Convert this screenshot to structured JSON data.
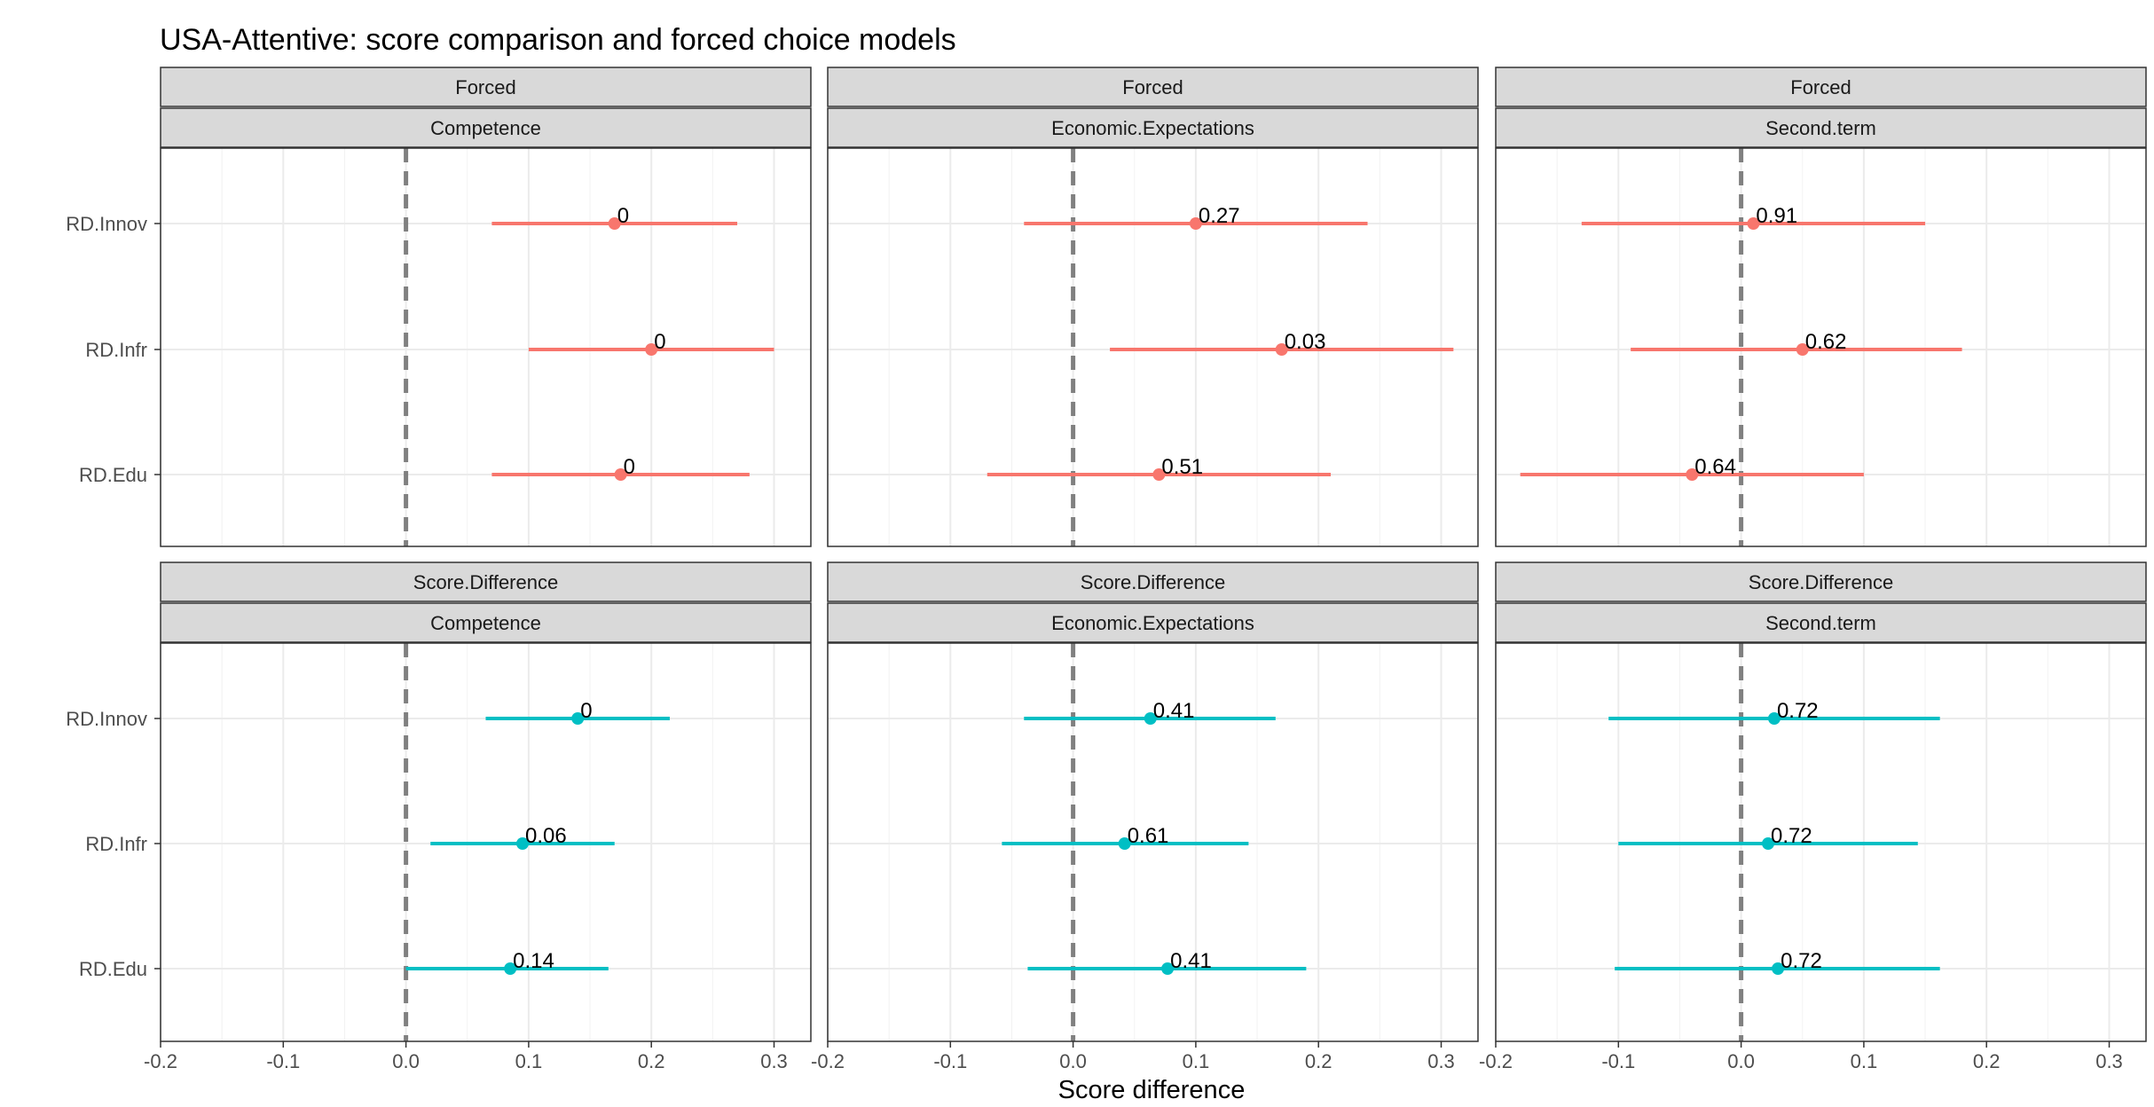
{
  "chart_data": {
    "type": "forest-plot",
    "title": "USA-Attentive: score comparison and forced choice models",
    "xlabel": "Score difference",
    "ylabel": "",
    "xlim": [
      -0.2,
      0.33
    ],
    "x_ticks": [
      -0.2,
      -0.1,
      0.0,
      0.1,
      0.2,
      0.3
    ],
    "x_tick_labels": [
      "-0.2",
      "-0.1",
      "0.0",
      "0.1",
      "0.2",
      "0.3"
    ],
    "categories": [
      "RD.Innov",
      "RD.Infr",
      "RD.Edu"
    ],
    "reference_line": 0,
    "grid": true,
    "colors": {
      "Forced": "#F8766D",
      "Score.Difference": "#00BFC4",
      "reference": "#808080",
      "strip": "#D9D9D9"
    },
    "facet_rows": [
      "Forced",
      "Score.Difference"
    ],
    "facet_cols": [
      "Competence",
      "Economic.Expectations",
      "Second.term"
    ],
    "panels": [
      {
        "row": "Forced",
        "col": "Competence",
        "points": [
          {
            "category": "RD.Innov",
            "estimate": 0.17,
            "lower": 0.07,
            "upper": 0.27,
            "label": "0"
          },
          {
            "category": "RD.Infr",
            "estimate": 0.2,
            "lower": 0.1,
            "upper": 0.3,
            "label": "0"
          },
          {
            "category": "RD.Edu",
            "estimate": 0.175,
            "lower": 0.07,
            "upper": 0.28,
            "label": "0"
          }
        ]
      },
      {
        "row": "Forced",
        "col": "Economic.Expectations",
        "points": [
          {
            "category": "RD.Innov",
            "estimate": 0.1,
            "lower": -0.04,
            "upper": 0.24,
            "label": "0.27"
          },
          {
            "category": "RD.Infr",
            "estimate": 0.17,
            "lower": 0.03,
            "upper": 0.31,
            "label": "0.03"
          },
          {
            "category": "RD.Edu",
            "estimate": 0.07,
            "lower": -0.07,
            "upper": 0.21,
            "label": "0.51"
          }
        ]
      },
      {
        "row": "Forced",
        "col": "Second.term",
        "points": [
          {
            "category": "RD.Innov",
            "estimate": 0.01,
            "lower": -0.13,
            "upper": 0.15,
            "label": "0.91"
          },
          {
            "category": "RD.Infr",
            "estimate": 0.05,
            "lower": -0.09,
            "upper": 0.18,
            "label": "0.62"
          },
          {
            "category": "RD.Edu",
            "estimate": -0.04,
            "lower": -0.18,
            "upper": 0.1,
            "label": "0.64"
          }
        ]
      },
      {
        "row": "Score.Difference",
        "col": "Competence",
        "points": [
          {
            "category": "RD.Innov",
            "estimate": 0.14,
            "lower": 0.065,
            "upper": 0.215,
            "label": "0"
          },
          {
            "category": "RD.Infr",
            "estimate": 0.095,
            "lower": 0.02,
            "upper": 0.17,
            "label": "0.06"
          },
          {
            "category": "RD.Edu",
            "estimate": 0.085,
            "lower": 0.0,
            "upper": 0.165,
            "label": "0.14"
          }
        ]
      },
      {
        "row": "Score.Difference",
        "col": "Economic.Expectations",
        "points": [
          {
            "category": "RD.Innov",
            "estimate": 0.063,
            "lower": -0.04,
            "upper": 0.165,
            "label": "0.41"
          },
          {
            "category": "RD.Infr",
            "estimate": 0.042,
            "lower": -0.058,
            "upper": 0.143,
            "label": "0.61"
          },
          {
            "category": "RD.Edu",
            "estimate": 0.077,
            "lower": -0.037,
            "upper": 0.19,
            "label": "0.41"
          }
        ]
      },
      {
        "row": "Score.Difference",
        "col": "Second.term",
        "points": [
          {
            "category": "RD.Innov",
            "estimate": 0.027,
            "lower": -0.108,
            "upper": 0.162,
            "label": "0.72"
          },
          {
            "category": "RD.Infr",
            "estimate": 0.022,
            "lower": -0.1,
            "upper": 0.144,
            "label": "0.72"
          },
          {
            "category": "RD.Edu",
            "estimate": 0.03,
            "lower": -0.103,
            "upper": 0.162,
            "label": "0.72"
          }
        ]
      }
    ]
  }
}
